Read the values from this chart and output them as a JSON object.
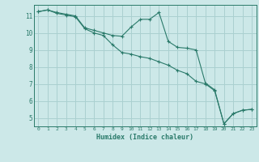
{
  "xlabel": "Humidex (Indice chaleur)",
  "ylabel": "",
  "background_color": "#cce8e8",
  "grid_color": "#aad0d0",
  "line_color": "#2a7a6a",
  "marker_color": "#2a7a6a",
  "xlim": [
    -0.5,
    23.5
  ],
  "ylim": [
    4.5,
    11.65
  ],
  "xticks": [
    0,
    1,
    2,
    3,
    4,
    5,
    6,
    7,
    8,
    9,
    10,
    11,
    12,
    13,
    14,
    15,
    16,
    17,
    18,
    19,
    20,
    21,
    22,
    23
  ],
  "yticks": [
    5,
    6,
    7,
    8,
    9,
    10,
    11
  ],
  "series1_x": [
    0,
    1,
    2,
    3,
    4,
    5,
    6,
    7,
    8,
    9,
    10,
    11,
    12,
    13,
    14,
    15,
    16,
    17,
    18,
    19,
    20,
    21,
    22,
    23
  ],
  "series1_y": [
    11.25,
    11.35,
    11.2,
    11.1,
    11.0,
    10.3,
    10.15,
    10.0,
    9.85,
    9.8,
    10.35,
    10.8,
    10.8,
    11.2,
    9.5,
    9.15,
    9.1,
    9.0,
    7.05,
    6.65,
    4.65,
    5.25,
    5.45,
    5.5
  ],
  "series2_x": [
    0,
    1,
    2,
    3,
    4,
    5,
    6,
    7,
    8,
    9,
    10,
    11,
    12,
    13,
    14,
    15,
    16,
    17,
    18,
    19,
    20,
    21,
    22,
    23
  ],
  "series2_y": [
    11.25,
    11.35,
    11.15,
    11.05,
    10.95,
    10.25,
    10.0,
    9.85,
    9.3,
    8.85,
    8.75,
    8.6,
    8.5,
    8.3,
    8.1,
    7.8,
    7.6,
    7.15,
    7.0,
    6.6,
    4.65,
    5.25,
    5.45,
    5.5
  ]
}
